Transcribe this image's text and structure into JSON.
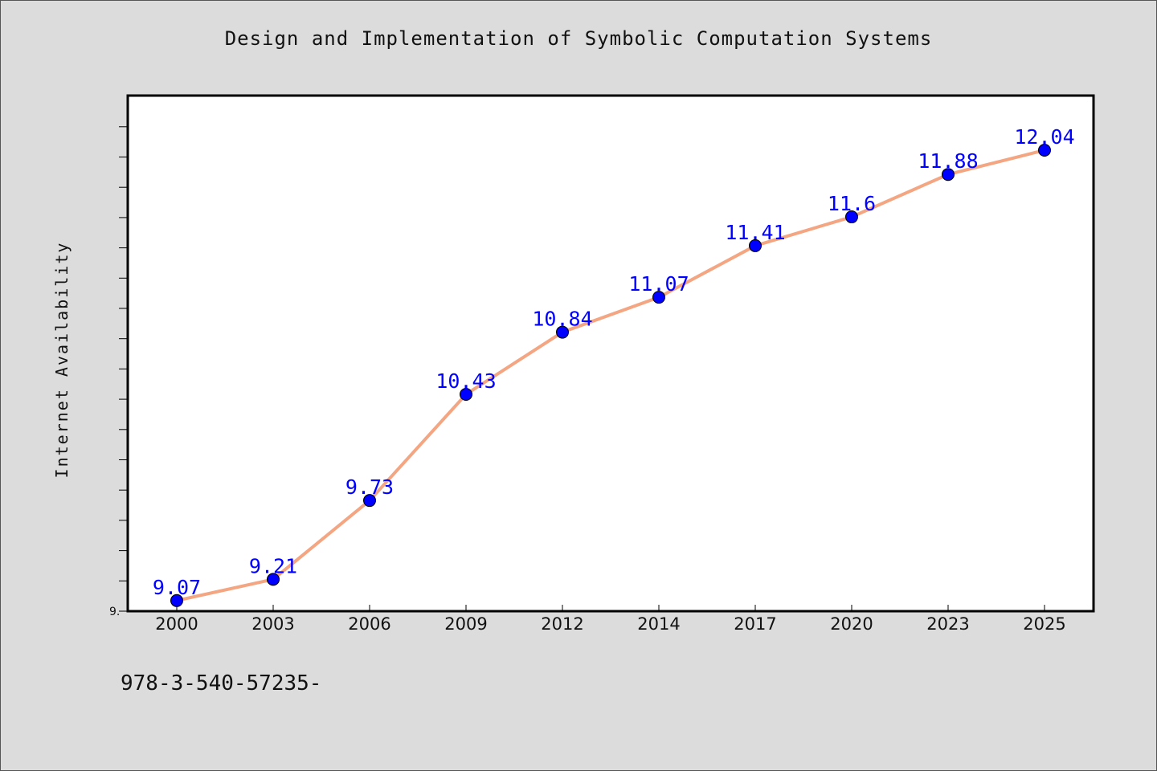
{
  "title": "Design and Implementation of Symbolic Computation Systems",
  "footer_text": "978-3-540-57235-",
  "colors": {
    "background": "#dcdcdc",
    "plot_background": "#ffffff",
    "line": "#f4a582",
    "marker_fill": "#0000ff",
    "data_label": "#0000ff"
  },
  "chart_data": {
    "type": "line",
    "title": "Design and Implementation of Symbolic Computation Systems",
    "xlabel": "",
    "ylabel": "Internet Availability",
    "x": [
      "2000",
      "2003",
      "2006",
      "2009",
      "2012",
      "2014",
      "2017",
      "2020",
      "2023",
      "2025"
    ],
    "series": [
      {
        "values": [
          9.07,
          9.21,
          9.73,
          10.43,
          10.84,
          11.07,
          11.41,
          11.6,
          11.88,
          12.04
        ]
      }
    ],
    "data_labels": [
      "9.07",
      "9.21",
      "9.73",
      "10.43",
      "10.84",
      "11.07",
      "11.41",
      "11.6",
      "11.88",
      "12.04"
    ],
    "ylim": [
      9.0,
      12.4
    ],
    "y_tick_labels": [
      "9."
    ],
    "grid": false,
    "legend": "none",
    "marker": "circle"
  }
}
